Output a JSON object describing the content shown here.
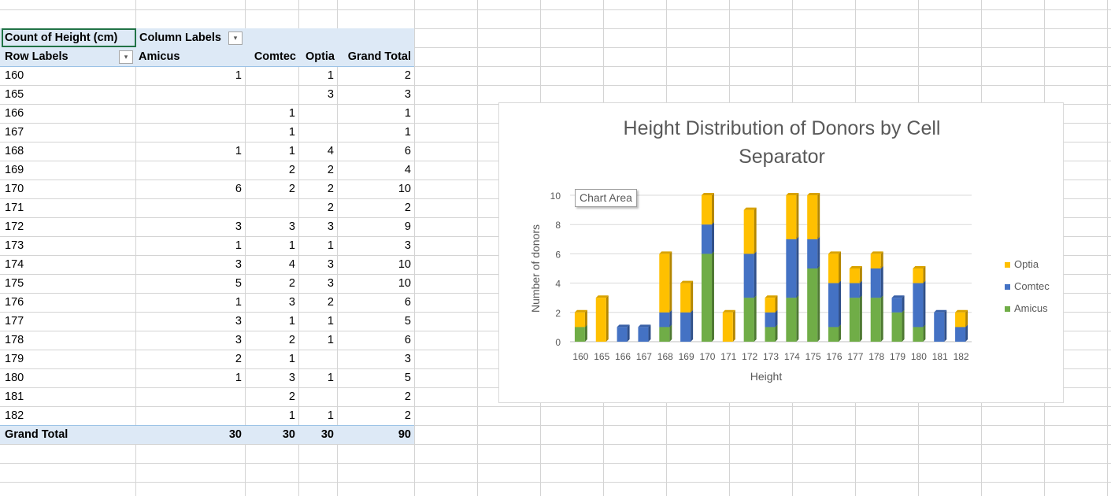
{
  "pivot": {
    "header": {
      "value_field": "Count of Height (cm)",
      "column_labels": "Column Labels",
      "row_labels": "Row Labels",
      "columns": [
        "Amicus",
        "Comtec",
        "Optia",
        "Grand Total"
      ],
      "dropdown_icon": "filter-dropdown-icon"
    },
    "rows": [
      {
        "label": "160",
        "amicus": "1",
        "comtec": "",
        "optia": "1",
        "total": "2"
      },
      {
        "label": "165",
        "amicus": "",
        "comtec": "",
        "optia": "3",
        "total": "3"
      },
      {
        "label": "166",
        "amicus": "",
        "comtec": "1",
        "optia": "",
        "total": "1"
      },
      {
        "label": "167",
        "amicus": "",
        "comtec": "1",
        "optia": "",
        "total": "1"
      },
      {
        "label": "168",
        "amicus": "1",
        "comtec": "1",
        "optia": "4",
        "total": "6"
      },
      {
        "label": "169",
        "amicus": "",
        "comtec": "2",
        "optia": "2",
        "total": "4"
      },
      {
        "label": "170",
        "amicus": "6",
        "comtec": "2",
        "optia": "2",
        "total": "10"
      },
      {
        "label": "171",
        "amicus": "",
        "comtec": "",
        "optia": "2",
        "total": "2"
      },
      {
        "label": "172",
        "amicus": "3",
        "comtec": "3",
        "optia": "3",
        "total": "9"
      },
      {
        "label": "173",
        "amicus": "1",
        "comtec": "1",
        "optia": "1",
        "total": "3"
      },
      {
        "label": "174",
        "amicus": "3",
        "comtec": "4",
        "optia": "3",
        "total": "10"
      },
      {
        "label": "175",
        "amicus": "5",
        "comtec": "2",
        "optia": "3",
        "total": "10"
      },
      {
        "label": "176",
        "amicus": "1",
        "comtec": "3",
        "optia": "2",
        "total": "6"
      },
      {
        "label": "177",
        "amicus": "3",
        "comtec": "1",
        "optia": "1",
        "total": "5"
      },
      {
        "label": "178",
        "amicus": "3",
        "comtec": "2",
        "optia": "1",
        "total": "6"
      },
      {
        "label": "179",
        "amicus": "2",
        "comtec": "1",
        "optia": "",
        "total": "3"
      },
      {
        "label": "180",
        "amicus": "1",
        "comtec": "3",
        "optia": "1",
        "total": "5"
      },
      {
        "label": "181",
        "amicus": "",
        "comtec": "2",
        "optia": "",
        "total": "2"
      },
      {
        "label": "182",
        "amicus": "",
        "comtec": "1",
        "optia": "1",
        "total": "2"
      }
    ],
    "grand_total": {
      "label": "Grand Total",
      "amicus": "30",
      "comtec": "30",
      "optia": "30",
      "total": "90"
    }
  },
  "tooltip": "Chart Area",
  "colors": {
    "amicus": "#70ad47",
    "comtec": "#4472c4",
    "optia": "#ffc000",
    "header_fill": "#dde9f6",
    "selection": "#217346"
  },
  "chart_data": {
    "type": "bar",
    "stacked": true,
    "title": "Height Distribution of Donors by Cell Separator",
    "xlabel": "Height",
    "ylabel": "Number of donors",
    "ylim": [
      0,
      10
    ],
    "yticks": [
      0,
      2,
      4,
      6,
      8,
      10
    ],
    "grid": true,
    "legend_position": "right",
    "categories": [
      "160",
      "165",
      "166",
      "167",
      "168",
      "169",
      "170",
      "171",
      "172",
      "173",
      "174",
      "175",
      "176",
      "177",
      "178",
      "179",
      "180",
      "181",
      "182"
    ],
    "series": [
      {
        "name": "Amicus",
        "color": "#70ad47",
        "values": [
          1,
          0,
          0,
          0,
          1,
          0,
          6,
          0,
          3,
          1,
          3,
          5,
          1,
          3,
          3,
          2,
          1,
          0,
          0
        ]
      },
      {
        "name": "Comtec",
        "color": "#4472c4",
        "values": [
          0,
          0,
          1,
          1,
          1,
          2,
          2,
          0,
          3,
          1,
          4,
          2,
          3,
          1,
          2,
          1,
          3,
          2,
          1
        ]
      },
      {
        "name": "Optia",
        "color": "#ffc000",
        "values": [
          1,
          3,
          0,
          0,
          4,
          2,
          2,
          2,
          3,
          1,
          3,
          3,
          2,
          1,
          1,
          0,
          1,
          0,
          1
        ]
      }
    ]
  }
}
